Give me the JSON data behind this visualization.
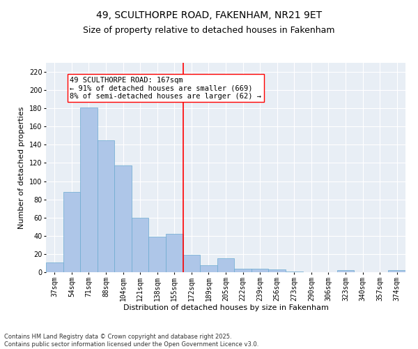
{
  "title1": "49, SCULTHORPE ROAD, FAKENHAM, NR21 9ET",
  "title2": "Size of property relative to detached houses in Fakenham",
  "xlabel": "Distribution of detached houses by size in Fakenham",
  "ylabel": "Number of detached properties",
  "categories": [
    "37sqm",
    "54sqm",
    "71sqm",
    "88sqm",
    "104sqm",
    "121sqm",
    "138sqm",
    "155sqm",
    "172sqm",
    "189sqm",
    "205sqm",
    "222sqm",
    "239sqm",
    "256sqm",
    "273sqm",
    "290sqm",
    "306sqm",
    "323sqm",
    "340sqm",
    "357sqm",
    "374sqm"
  ],
  "values": [
    11,
    88,
    181,
    145,
    117,
    60,
    39,
    42,
    19,
    8,
    15,
    4,
    4,
    3,
    1,
    0,
    0,
    2,
    0,
    0,
    2
  ],
  "bar_color": "#aec6e8",
  "bar_edge_color": "#6baad0",
  "annotation_line1": "49 SCULTHORPE ROAD: 167sqm",
  "annotation_line2": "← 91% of detached houses are smaller (669)",
  "annotation_line3": "8% of semi-detached houses are larger (62) →",
  "annotation_box_color": "white",
  "annotation_box_edge_color": "red",
  "vline_color": "red",
  "ylim": [
    0,
    230
  ],
  "yticks": [
    0,
    20,
    40,
    60,
    80,
    100,
    120,
    140,
    160,
    180,
    200,
    220
  ],
  "background_color": "#e8eef5",
  "grid_color": "white",
  "footer1": "Contains HM Land Registry data © Crown copyright and database right 2025.",
  "footer2": "Contains public sector information licensed under the Open Government Licence v3.0.",
  "title_fontsize": 10,
  "subtitle_fontsize": 9,
  "axis_label_fontsize": 8,
  "tick_fontsize": 7,
  "annotation_fontsize": 7.5,
  "footer_fontsize": 6
}
